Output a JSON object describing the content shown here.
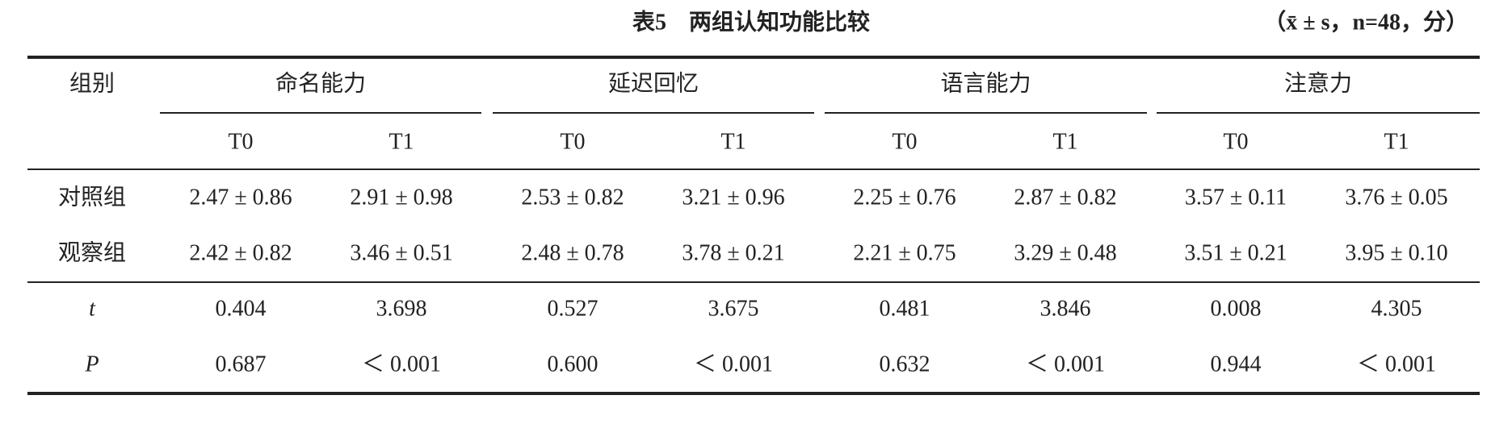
{
  "title": "表5　两组认知功能比较",
  "note": "（x̄ ± s，n=48，分）",
  "table": {
    "header": {
      "corner": "组别",
      "groups": [
        "命名能力",
        "延迟回忆",
        "语言能力",
        "注意力"
      ],
      "sub": [
        "T0",
        "T1",
        "T0",
        "T1",
        "T0",
        "T1",
        "T0",
        "T1"
      ]
    },
    "rows": [
      [
        "对照组",
        "2.47 ± 0.86",
        "2.91 ± 0.98",
        "2.53 ± 0.82",
        "3.21 ± 0.96",
        "2.25 ± 0.76",
        "2.87 ± 0.82",
        "3.57 ± 0.11",
        "3.76 ± 0.05"
      ],
      [
        "观察组",
        "2.42 ± 0.82",
        "3.46 ± 0.51",
        "2.48 ± 0.78",
        "3.78 ± 0.21",
        "2.21 ± 0.75",
        "3.29 ± 0.48",
        "3.51 ± 0.21",
        "3.95 ± 0.10"
      ],
      [
        "t",
        "0.404",
        "3.698",
        "0.527",
        "3.675",
        "0.481",
        "3.846",
        "0.008",
        "4.305"
      ],
      [
        "P",
        "0.687",
        "＜ 0.001",
        "0.600",
        "＜ 0.001",
        "0.632",
        "＜ 0.001",
        "0.944",
        "＜ 0.001"
      ]
    ]
  }
}
